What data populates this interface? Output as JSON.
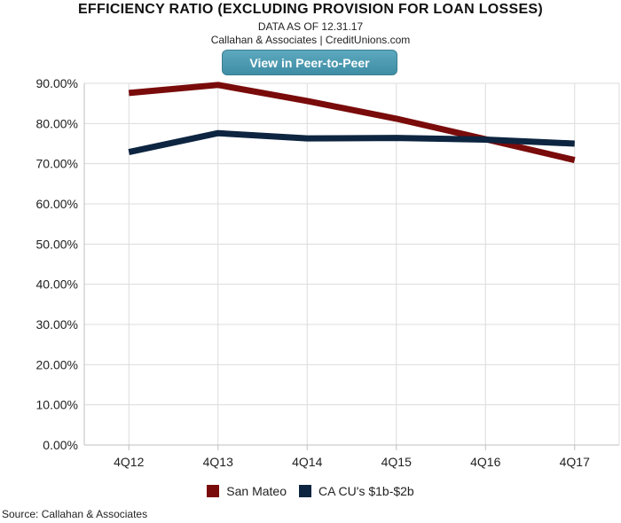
{
  "header": {
    "title": "EFFICIENCY RATIO (EXCLUDING PROVISION FOR LOAN LOSSES)",
    "data_as_of": "DATA AS OF 12.31.17",
    "publisher": "Callahan & Associates | CreditUnions.com",
    "button_label": "View in Peer-to-Peer"
  },
  "footer": {
    "source": "Source: Callahan & Associates"
  },
  "chart_data": {
    "type": "line",
    "title": "EFFICIENCY RATIO (EXCLUDING PROVISION FOR LOAN LOSSES)",
    "xlabel": "",
    "ylabel": "",
    "categories": [
      "4Q12",
      "4Q13",
      "4Q14",
      "4Q15",
      "4Q16",
      "4Q17"
    ],
    "ylim": [
      0,
      90
    ],
    "yticks": [
      0,
      10,
      20,
      30,
      40,
      50,
      60,
      70,
      80,
      90
    ],
    "ytick_labels": [
      "0.00%",
      "10.00%",
      "20.00%",
      "30.00%",
      "40.00%",
      "50.00%",
      "60.00%",
      "70.00%",
      "80.00%",
      "90.00%"
    ],
    "grid": true,
    "legend_position": "bottom",
    "series": [
      {
        "name": "San Mateo",
        "color": "#7a0b0b",
        "values": [
          87.6,
          89.6,
          85.6,
          81.2,
          76.1,
          70.9
        ]
      },
      {
        "name": "CA CU's $1b-$2b",
        "color": "#0d2540",
        "values": [
          72.9,
          77.6,
          76.3,
          76.4,
          76.0,
          75.0
        ]
      }
    ]
  }
}
